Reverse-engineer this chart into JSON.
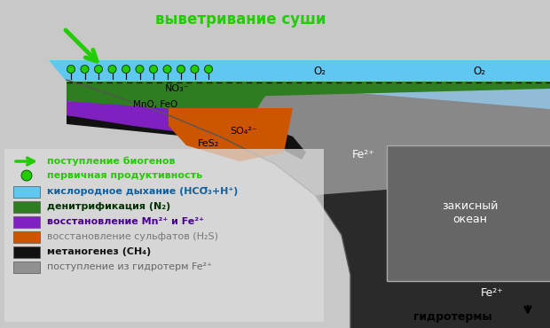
{
  "bg_color": "#d0d0d0",
  "sky_blue": "#60c8f0",
  "sky_blue_deep": "#90bcd8",
  "green_layer_color": "#2e7d20",
  "purple_layer_color": "#8020c0",
  "orange_layer_color": "#cc5500",
  "black_layer_color": "#111111",
  "gray_layer_color": "#909090",
  "ocean_mid_color": "#888888",
  "ocean_deep_color": "#2a2a2a",
  "land_color": "#c8c8c8",
  "land_edge_color": "#444444",
  "arrow_green": "#22cc00",
  "legend_bg": "#dcdcdc",
  "label_weathering": "выветривание суши",
  "label_biogeny": "поступление биогенов",
  "label_productivity": "первичная продуктивность",
  "label_zakisny": "закисный\nокеан",
  "label_gidrotermy": "гидротермы",
  "label_O2_1": "O₂",
  "label_O2_2": "O₂",
  "label_NO3": "NO₃⁻",
  "label_MnO": "MnO, FeO",
  "label_SO4": "SO₄²⁻",
  "label_FeS2": "FeS₂",
  "label_Fe2plus_mid": "Fe²⁺",
  "label_Fe2plus_bot": "Fe²⁺",
  "legend_cyan_text": "кислородное дыхание (HCO̅₃+H⁺)",
  "legend_green_text": "денитрификация (N₂)",
  "legend_purple_text": "восстановление Mn²⁺ и Fe²⁺",
  "legend_orange_text": "восстановление сульфатов (H₂S)",
  "legend_black_text": "метаногенез (CH₄)",
  "legend_gray_text": "поступление из гидротерм Fe²⁺"
}
